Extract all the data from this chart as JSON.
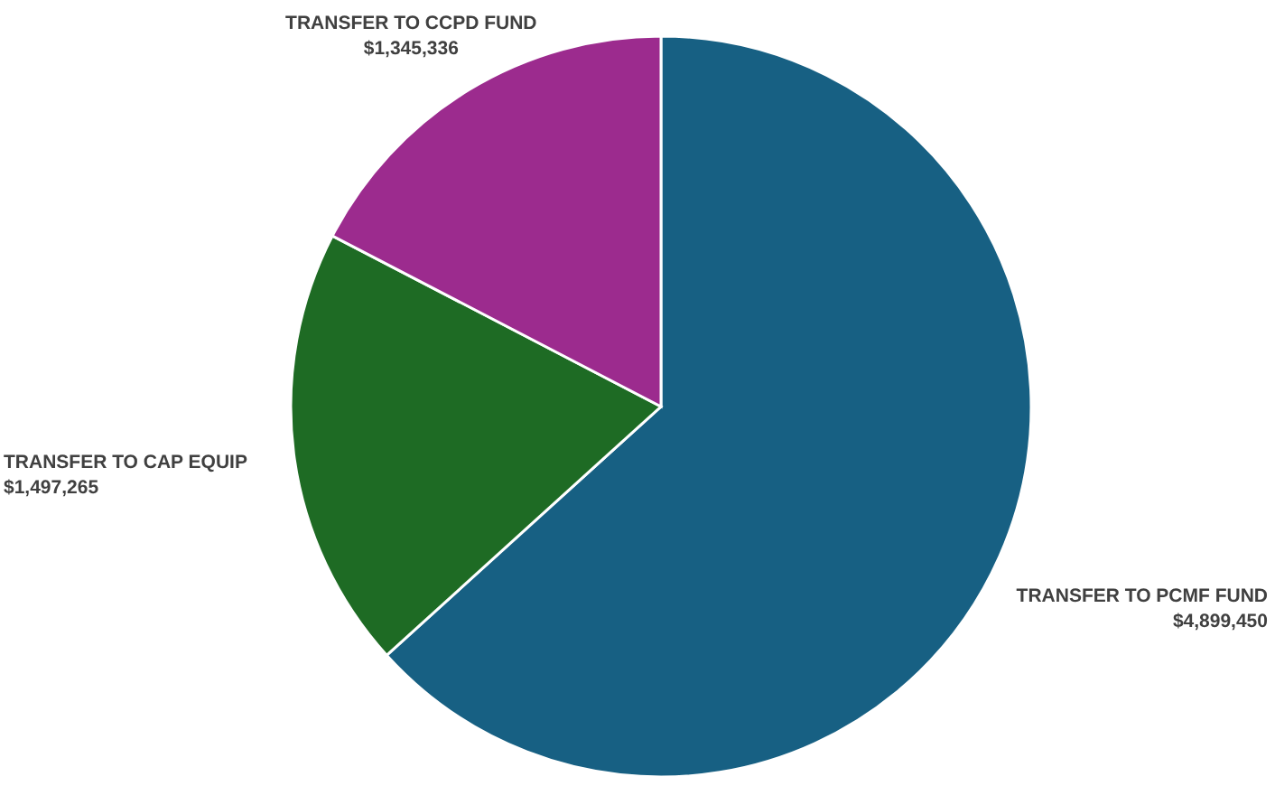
{
  "chart_data": {
    "type": "pie",
    "categories": [
      "TRANSFER TO PCMF FUND",
      "TRANSFER TO CAP EQUIP",
      "TRANSFER TO CCPD FUND"
    ],
    "values": [
      4899450,
      1497265,
      1345336
    ],
    "colors": [
      "#176083",
      "#1e6b24",
      "#9c2b8e"
    ],
    "value_labels": [
      "$4,899,450",
      "$1,497,265",
      "$1,345,336"
    ]
  }
}
